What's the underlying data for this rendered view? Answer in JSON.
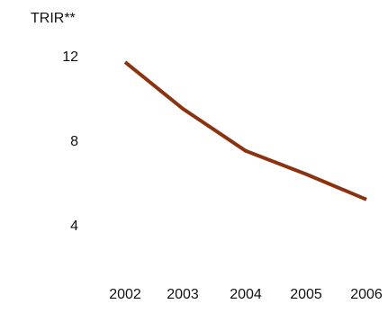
{
  "chart_data": {
    "type": "line",
    "ylabel": "TRIR**",
    "x": [
      "2002",
      "2003",
      "2004",
      "2005",
      "2006"
    ],
    "series": [
      {
        "values": [
          11.7,
          9.5,
          7.5,
          6.4,
          5.2
        ]
      }
    ],
    "yticks": [
      "12",
      "8",
      "4"
    ],
    "ylim": [
      4,
      12
    ],
    "grid": false,
    "legend": "none",
    "line_color": "#8b3310"
  }
}
